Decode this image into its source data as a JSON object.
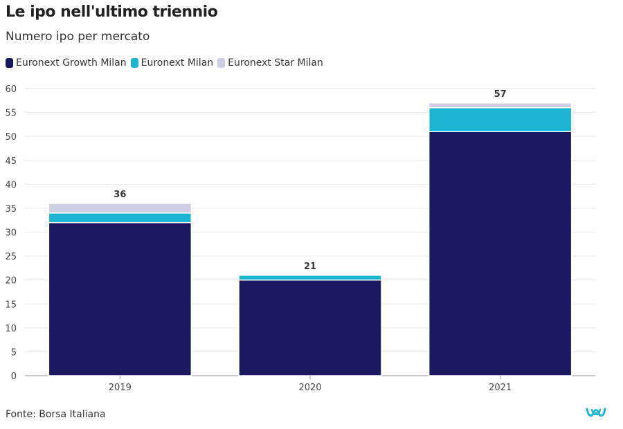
{
  "title": "Le ipo nell'ultimo triennio",
  "subtitle": "Numero ipo per mercato",
  "source": "Fonte: Borsa Italiana",
  "logo_icon": "wavy-w-logo-icon",
  "chart_data": {
    "type": "bar",
    "stacked": true,
    "categories": [
      "2019",
      "2020",
      "2021"
    ],
    "series": [
      {
        "name": "Euronext Growth Milan",
        "values": [
          32,
          20,
          51
        ],
        "color": "#1b1861"
      },
      {
        "name": "Euronext Milan",
        "values": [
          2,
          1,
          5
        ],
        "color": "#1bb5d3"
      },
      {
        "name": "Euronext Star Milan",
        "values": [
          2,
          0,
          1
        ],
        "color": "#cfcfe3"
      }
    ],
    "totals": [
      "36",
      "21",
      "57"
    ],
    "ylim": [
      0,
      60
    ],
    "yticks": [
      "0",
      "5",
      "10",
      "15",
      "20",
      "25",
      "30",
      "35",
      "40",
      "45",
      "50",
      "55",
      "60"
    ],
    "xlabel": "",
    "ylabel": "",
    "grid": true,
    "legend": "top-left"
  }
}
